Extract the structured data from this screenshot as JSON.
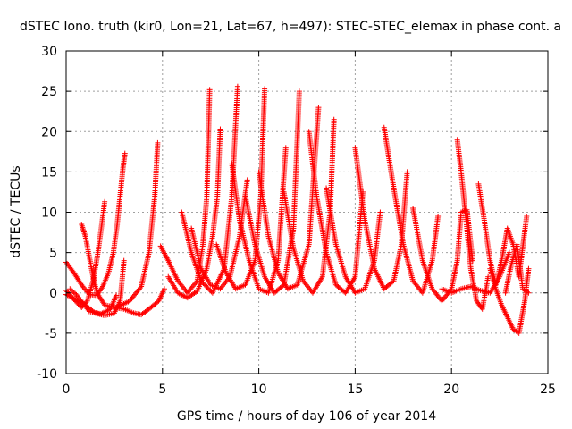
{
  "chart_data": {
    "type": "scatter",
    "title": "dSTEC Iono. truth (kir0, Lon=21, Lat=67, h=497): STEC-STEC_elemax in phase cont. a",
    "xlabel": "GPS time / hours of day 106 of year 2014",
    "ylabel": "dSTEC  / TECUs",
    "xlim": [
      0,
      25
    ],
    "ylim": [
      -10,
      30
    ],
    "xticks": [
      0,
      5,
      10,
      15,
      20,
      25
    ],
    "yticks": [
      -10,
      -5,
      0,
      5,
      10,
      15,
      20,
      25,
      30
    ],
    "grid": true,
    "marker": "+",
    "color": "#ff0000",
    "series": [
      {
        "x": [
          0.0,
          0.4,
          0.8,
          1.2,
          1.6,
          1.9,
          2.2,
          2.45,
          2.65,
          2.8,
          2.95,
          3.05
        ],
        "y": [
          3.8,
          2.5,
          1.0,
          -0.2,
          -0.3,
          0.8,
          2.5,
          5.0,
          8.5,
          12.0,
          15.5,
          17.3
        ]
      },
      {
        "x": [
          0.0,
          0.4,
          0.8,
          1.1,
          1.4,
          1.65,
          1.85,
          2.0
        ],
        "y": [
          0.3,
          -0.8,
          -1.8,
          -1.0,
          1.5,
          5.0,
          8.5,
          11.3
        ]
      },
      {
        "x": [
          0.8,
          1.0,
          1.2,
          1.4,
          1.6,
          2.0,
          2.6,
          3.3,
          3.9,
          4.3,
          4.6,
          4.75
        ],
        "y": [
          8.5,
          7.0,
          4.5,
          2.0,
          0.0,
          -1.5,
          -1.8,
          -1.0,
          0.8,
          5.0,
          12.0,
          18.6
        ]
      },
      {
        "x": [
          0.0,
          0.5,
          1.0,
          1.5,
          2.0,
          2.5,
          2.8,
          3.0
        ],
        "y": [
          -0.2,
          -0.8,
          -1.5,
          -2.5,
          -2.8,
          -2.5,
          -1.0,
          4.0
        ]
      },
      {
        "x": [
          0.2,
          0.6,
          1.2,
          1.8,
          2.3,
          2.6
        ],
        "y": [
          0.5,
          -0.4,
          -2.3,
          -2.6,
          -2.0,
          -0.3
        ]
      },
      {
        "x": [
          2.5,
          3.0,
          3.5,
          3.9,
          4.3,
          4.8,
          5.1
        ],
        "y": [
          -1.8,
          -2.0,
          -2.5,
          -2.7,
          -2.0,
          -1.0,
          0.5
        ]
      },
      {
        "x": [
          4.9,
          5.3,
          5.8,
          6.3,
          6.8,
          7.1,
          7.3,
          7.45
        ],
        "y": [
          5.8,
          4.0,
          1.5,
          0.0,
          1.5,
          6.0,
          12.0,
          25.2
        ]
      },
      {
        "x": [
          5.3,
          5.8,
          6.3,
          6.8,
          7.3,
          7.6,
          7.85,
          8.0
        ],
        "y": [
          2.0,
          0.0,
          -0.6,
          0.2,
          3.0,
          7.0,
          12.0,
          20.3
        ]
      },
      {
        "x": [
          6.0,
          6.5,
          7.0,
          7.6,
          8.2,
          8.6,
          8.9
        ],
        "y": [
          10.0,
          5.0,
          1.5,
          0.0,
          3.0,
          12.0,
          25.6
        ]
      },
      {
        "x": [
          6.5,
          7.0,
          7.5,
          8.0,
          8.5,
          9.0,
          9.4
        ],
        "y": [
          8.0,
          3.0,
          1.0,
          0.5,
          2.0,
          7.0,
          14.0
        ]
      },
      {
        "x": [
          7.8,
          8.3,
          8.8,
          9.3,
          9.8,
          10.1,
          10.3
        ],
        "y": [
          6.0,
          2.5,
          0.5,
          1.0,
          4.0,
          12.0,
          25.3
        ]
      },
      {
        "x": [
          8.6,
          9.0,
          9.5,
          10.0,
          10.5,
          11.0,
          11.4
        ],
        "y": [
          16.0,
          9.0,
          4.0,
          0.5,
          0.0,
          4.0,
          18.0
        ]
      },
      {
        "x": [
          9.3,
          9.8,
          10.3,
          10.8,
          11.3,
          11.8,
          12.1
        ],
        "y": [
          12.0,
          6.0,
          2.0,
          0.0,
          1.0,
          8.0,
          25.0
        ]
      },
      {
        "x": [
          10.0,
          10.5,
          11.0,
          11.5,
          12.0,
          12.6,
          13.1
        ],
        "y": [
          15.0,
          7.0,
          2.5,
          0.5,
          1.0,
          6.0,
          23.0
        ]
      },
      {
        "x": [
          11.3,
          11.8,
          12.3,
          12.8,
          13.3,
          13.7,
          13.9
        ],
        "y": [
          12.5,
          5.5,
          1.5,
          0.0,
          2.0,
          10.0,
          21.5
        ]
      },
      {
        "x": [
          12.6,
          13.0,
          13.5,
          14.0,
          14.5,
          15.0,
          15.4
        ],
        "y": [
          20.0,
          12.0,
          5.0,
          1.0,
          0.0,
          2.0,
          12.5
        ]
      },
      {
        "x": [
          13.5,
          14.0,
          14.5,
          15.0,
          15.5,
          16.0,
          16.3
        ],
        "y": [
          13.0,
          6.0,
          2.0,
          0.0,
          0.5,
          4.0,
          10.0
        ]
      },
      {
        "x": [
          15.0,
          15.5,
          16.0,
          16.5,
          17.0,
          17.4,
          17.7
        ],
        "y": [
          18.0,
          9.0,
          3.0,
          0.5,
          1.5,
          6.0,
          15.0
        ]
      },
      {
        "x": [
          16.5,
          17.0,
          17.5,
          18.0,
          18.5,
          19.0,
          19.3
        ],
        "y": [
          20.5,
          13.0,
          6.0,
          1.5,
          0.0,
          4.0,
          9.5
        ]
      },
      {
        "x": [
          18.0,
          18.5,
          19.0,
          19.5,
          20.0,
          20.3,
          20.5,
          20.8,
          21.1
        ],
        "y": [
          10.5,
          4.0,
          0.5,
          -1.0,
          0.5,
          4.0,
          10.0,
          10.3,
          4.0
        ]
      },
      {
        "x": [
          19.5,
          20.0,
          20.5,
          21.0,
          21.5,
          22.0,
          22.5,
          23.0
        ],
        "y": [
          0.5,
          0.0,
          0.5,
          0.8,
          0.3,
          0.0,
          2.0,
          5.0
        ]
      },
      {
        "x": [
          20.3,
          20.5,
          20.8,
          21.0,
          21.3,
          21.6,
          21.9
        ],
        "y": [
          19.0,
          15.0,
          8.0,
          3.0,
          -1.0,
          -2.0,
          2.0
        ]
      },
      {
        "x": [
          21.4,
          21.7,
          22.0,
          22.3,
          22.6,
          22.9,
          23.2,
          23.5,
          23.9
        ],
        "y": [
          13.5,
          9.0,
          4.0,
          1.0,
          4.0,
          8.0,
          6.0,
          2.0,
          9.5
        ]
      },
      {
        "x": [
          22.0,
          22.3,
          22.6,
          22.9,
          23.2,
          23.5,
          23.8,
          24.0
        ],
        "y": [
          3.0,
          0.5,
          -1.5,
          -3.0,
          -4.5,
          -5.0,
          -1.0,
          3.0
        ]
      },
      {
        "x": [
          22.8,
          23.1,
          23.4,
          23.7,
          24.0
        ],
        "y": [
          0.0,
          3.5,
          6.0,
          0.5,
          0.0
        ]
      }
    ]
  }
}
